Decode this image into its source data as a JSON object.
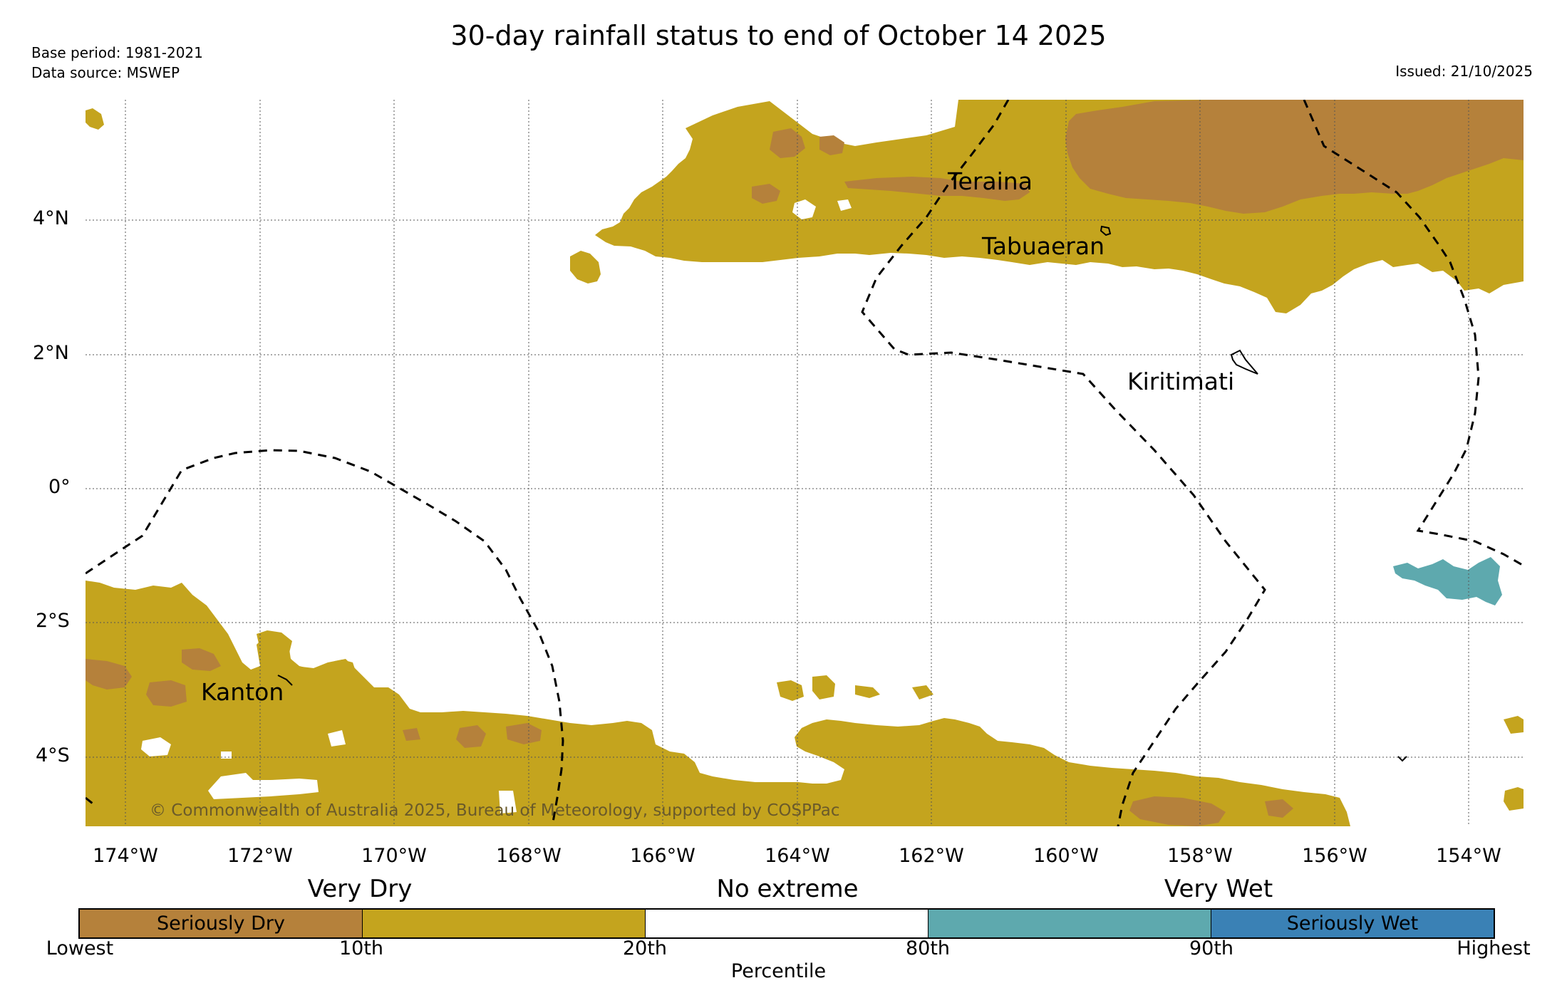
{
  "header": {
    "title": "30-day rainfall status to end of October 14 2025",
    "base_period": "Base period: 1981-2021",
    "data_source": "Data source: MSWEP",
    "issued": "Issued: 21/10/2025"
  },
  "map": {
    "lat_labels": [
      "4°N",
      "2°N",
      "0°",
      "2°S",
      "4°S"
    ],
    "lon_labels": [
      "174°W",
      "172°W",
      "170°W",
      "168°W",
      "166°W",
      "164°W",
      "162°W",
      "160°W",
      "158°W",
      "156°W",
      "154°W"
    ],
    "places": {
      "teraina": "Teraina",
      "tabuaeran": "Tabuaeran",
      "kiritimati": "Kiritimati",
      "kanton": "Kanton"
    },
    "credit": "© Commonwealth of Australia 2025, Bureau of Meteorology, supported by COSPPac",
    "gridlines": "dotted",
    "eez_boundary_style": "dashed"
  },
  "legend": {
    "categories": [
      "Very Dry",
      "No extreme",
      "Very Wet"
    ],
    "bins": [
      {
        "label": "Seriously Dry",
        "color": "#b5813b"
      },
      {
        "label": "",
        "color": "#c4a41e"
      },
      {
        "label": "",
        "color": "#ffffff"
      },
      {
        "label": "",
        "color": "#5ea9ae"
      },
      {
        "label": "Seriously Wet",
        "color": "#3a81b5"
      }
    ],
    "ticks": [
      "Lowest",
      "10th",
      "20th",
      "80th",
      "90th",
      "Highest"
    ],
    "axis_label": "Percentile"
  }
}
